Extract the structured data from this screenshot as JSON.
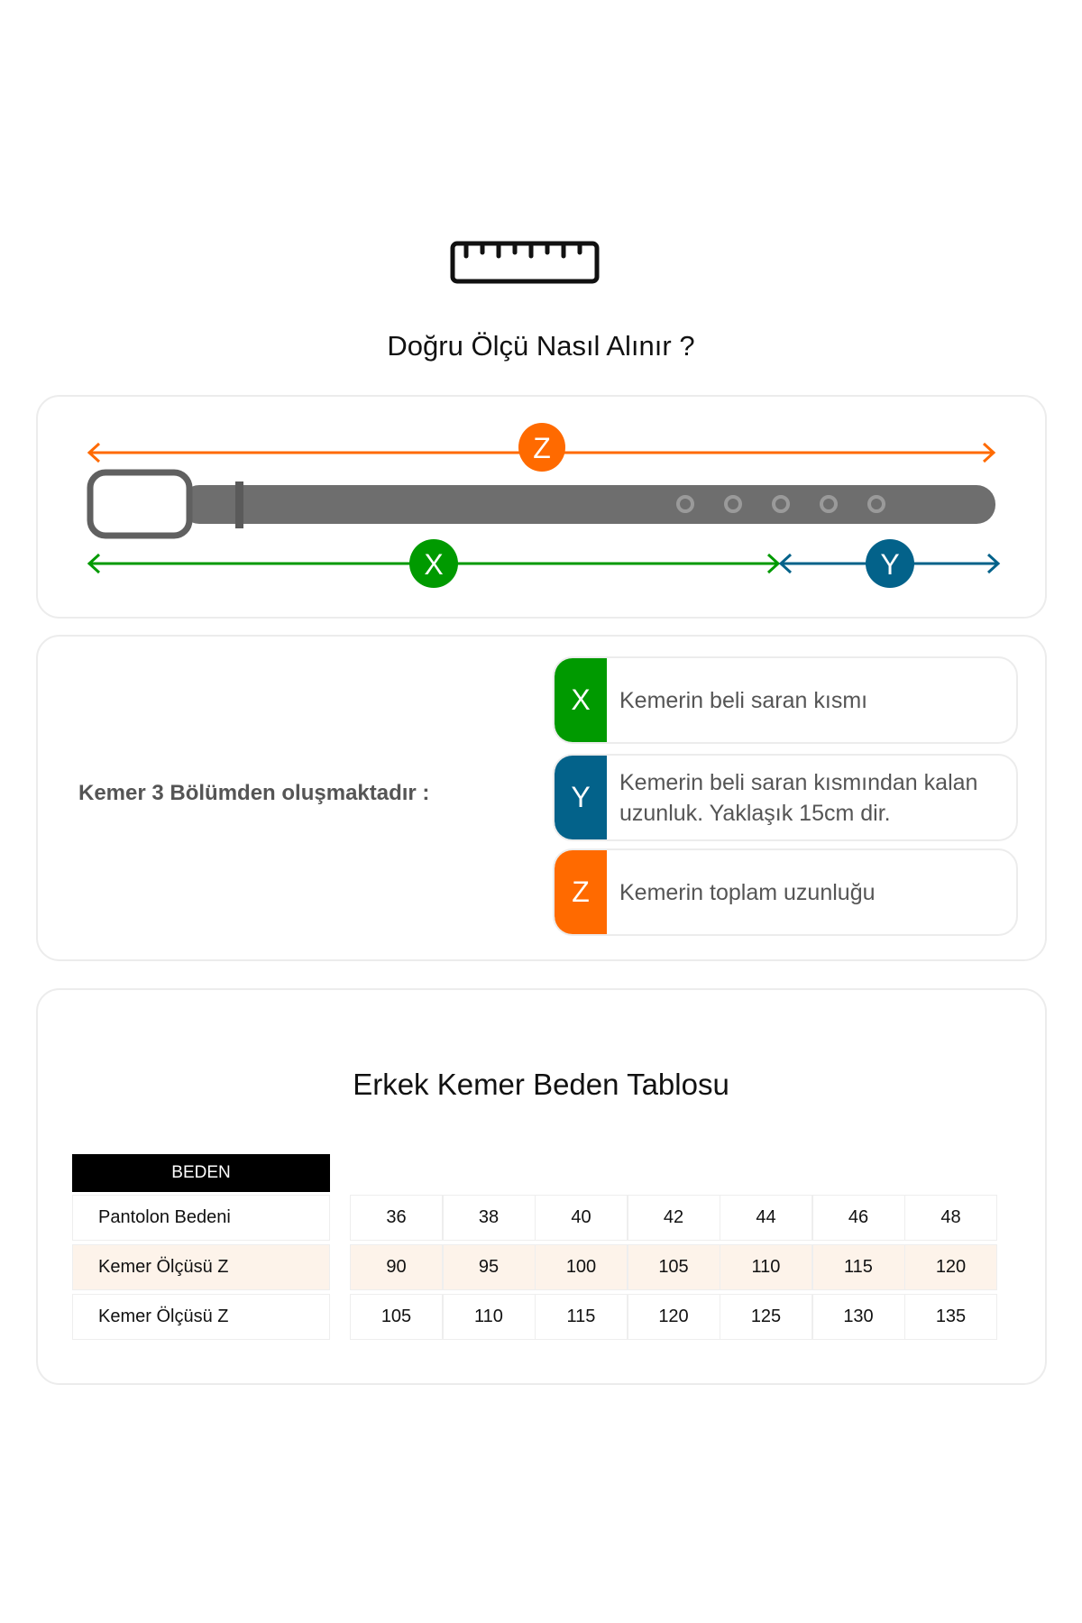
{
  "header": {
    "icon": "ruler-icon",
    "title": "Doğru Ölçü Nasıl Alınır ?"
  },
  "diagram": {
    "z_label": "Z",
    "x_label": "X",
    "y_label": "Y",
    "colors": {
      "z": "#ff6a00",
      "x": "#009a00",
      "y": "#03628a",
      "belt": "#6e6e6e"
    }
  },
  "parts": {
    "label": "Kemer 3 Bölümden oluşmaktadır :",
    "items": [
      {
        "letter": "X",
        "text": "Kemerin beli saran kısmı",
        "color": "#009a00"
      },
      {
        "letter": "Y",
        "text": "Kemerin beli saran kısmından kalan uzunluk. Yaklaşık 15cm dir.",
        "color": "#03628a"
      },
      {
        "letter": "Z",
        "text": "Kemerin toplam uzunluğu",
        "color": "#ff6a00"
      }
    ]
  },
  "size_table": {
    "title": "Erkek Kemer Beden Tablosu",
    "header": "BEDEN",
    "rows": [
      {
        "label": "Pantolon Bedeni",
        "values": [
          "36",
          "38",
          "40",
          "42",
          "44",
          "46",
          "48"
        ]
      },
      {
        "label": "Kemer Ölçüsü Z",
        "values": [
          "90",
          "95",
          "100",
          "105",
          "110",
          "115",
          "120"
        ],
        "highlight": true
      },
      {
        "label": "Kemer Ölçüsü Z",
        "values": [
          "105",
          "110",
          "115",
          "120",
          "125",
          "130",
          "135"
        ]
      }
    ]
  }
}
